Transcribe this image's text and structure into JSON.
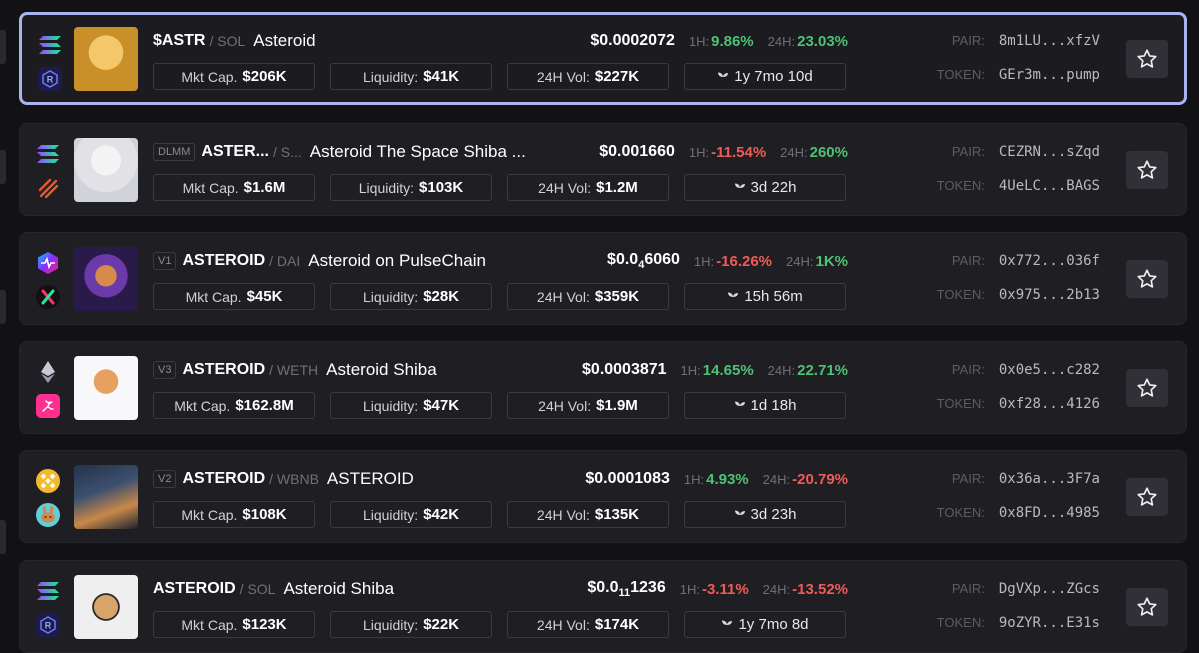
{
  "labels": {
    "h1": "1H:",
    "h24": "24H:",
    "pair": "PAIR:",
    "token": "TOKEN:",
    "mcap": "Mkt Cap.",
    "liq": "Liquidity:",
    "vol": "24H Vol:"
  },
  "colors": {
    "up": "#4cc274",
    "down": "#ef5b57",
    "selected_border": "#a9b3ee"
  },
  "rows": [
    {
      "selected": true,
      "version": "",
      "symbol": "$ASTR",
      "quote": "/ SOL",
      "name": "Asteroid",
      "price_pre": "$0.0002072",
      "price_sub": "",
      "price_post": "",
      "h1": "9.86%",
      "h1_dir": "up",
      "h24": "23.03%",
      "h24_dir": "up",
      "mcap": "$206K",
      "liquidity": "$41K",
      "volume": "$227K",
      "age": "1y 7mo 10d",
      "pair": "8m1LU...xfzV",
      "token": "GEr3m...pump",
      "chain_icon": "solana-icon",
      "dex_icon": "raydium-icon"
    },
    {
      "selected": false,
      "version": "DLMM",
      "symbol": "ASTER...",
      "quote": "/ S...",
      "name": "Asteroid The Space Shiba ...",
      "price_pre": "$0.001660",
      "price_sub": "",
      "price_post": "",
      "h1": "-11.54%",
      "h1_dir": "down",
      "h24": "260%",
      "h24_dir": "up",
      "mcap": "$1.6M",
      "liquidity": "$103K",
      "volume": "$1.2M",
      "age": "3d 22h",
      "pair": "CEZRN...sZqd",
      "token": "4UeLC...BAGS",
      "chain_icon": "solana-icon",
      "dex_icon": "meteora-icon"
    },
    {
      "selected": false,
      "version": "V1",
      "symbol": "ASTEROID",
      "quote": "/ DAI",
      "name": "Asteroid on PulseChain",
      "price_pre": "$0.0",
      "price_sub": "4",
      "price_post": "6060",
      "h1": "-16.26%",
      "h1_dir": "down",
      "h24": "1K%",
      "h24_dir": "up",
      "mcap": "$45K",
      "liquidity": "$28K",
      "volume": "$359K",
      "age": "15h 56m",
      "pair": "0x772...036f",
      "token": "0x975...2b13",
      "chain_icon": "pulsechain-icon",
      "dex_icon": "pulsex-icon"
    },
    {
      "selected": false,
      "version": "V3",
      "symbol": "ASTEROID",
      "quote": "/ WETH",
      "name": "Asteroid Shiba",
      "price_pre": "$0.0003871",
      "price_sub": "",
      "price_post": "",
      "h1": "14.65%",
      "h1_dir": "up",
      "h24": "22.71%",
      "h24_dir": "up",
      "mcap": "$162.8M",
      "liquidity": "$47K",
      "volume": "$1.9M",
      "age": "1d 18h",
      "pair": "0x0e5...c282",
      "token": "0xf28...4126",
      "chain_icon": "ethereum-icon",
      "dex_icon": "uniswap-icon"
    },
    {
      "selected": false,
      "version": "V2",
      "symbol": "ASTEROID",
      "quote": "/ WBNB",
      "name": "ASTEROID",
      "price_pre": "$0.0001083",
      "price_sub": "",
      "price_post": "",
      "h1": "4.93%",
      "h1_dir": "up",
      "h24": "-20.79%",
      "h24_dir": "down",
      "mcap": "$108K",
      "liquidity": "$42K",
      "volume": "$135K",
      "age": "3d 23h",
      "pair": "0x36a...3F7a",
      "token": "0x8FD...4985",
      "chain_icon": "bnb-chain-icon",
      "dex_icon": "pancakeswap-icon"
    },
    {
      "selected": false,
      "version": "",
      "symbol": "ASTEROID",
      "quote": "/ SOL",
      "name": "Asteroid Shiba",
      "price_pre": "$0.0",
      "price_sub": "11",
      "price_post": "1236",
      "h1": "-3.11%",
      "h1_dir": "down",
      "h24": "-13.52%",
      "h24_dir": "down",
      "mcap": "$123K",
      "liquidity": "$22K",
      "volume": "$174K",
      "age": "1y 7mo 8d",
      "pair": "DgVXp...ZGcs",
      "token": "9oZYR...E31s",
      "chain_icon": "solana-icon",
      "dex_icon": "raydium-icon"
    }
  ]
}
